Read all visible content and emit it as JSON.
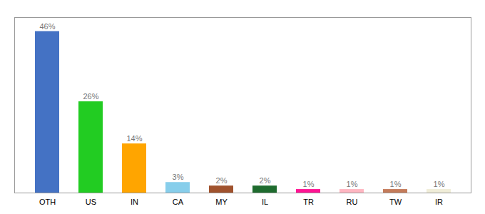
{
  "chart_data": {
    "type": "bar",
    "categories": [
      "OTH",
      "US",
      "IN",
      "CA",
      "MY",
      "IL",
      "TR",
      "RU",
      "TW",
      "IR"
    ],
    "values": [
      46,
      26,
      14,
      3,
      2,
      2,
      1,
      1,
      1,
      1
    ],
    "value_labels": [
      "46%",
      "26%",
      "14%",
      "3%",
      "2%",
      "2%",
      "1%",
      "1%",
      "1%",
      "1%"
    ],
    "colors": [
      "#4472C4",
      "#22CC22",
      "#FFA500",
      "#87CEEB",
      "#A0522D",
      "#1E6B2E",
      "#FF1493",
      "#FFB6C1",
      "#C47B5A",
      "#F0EDD8"
    ],
    "ylim": [
      0,
      50
    ],
    "data_labels": true,
    "tick_labels": "x",
    "grid": false
  }
}
